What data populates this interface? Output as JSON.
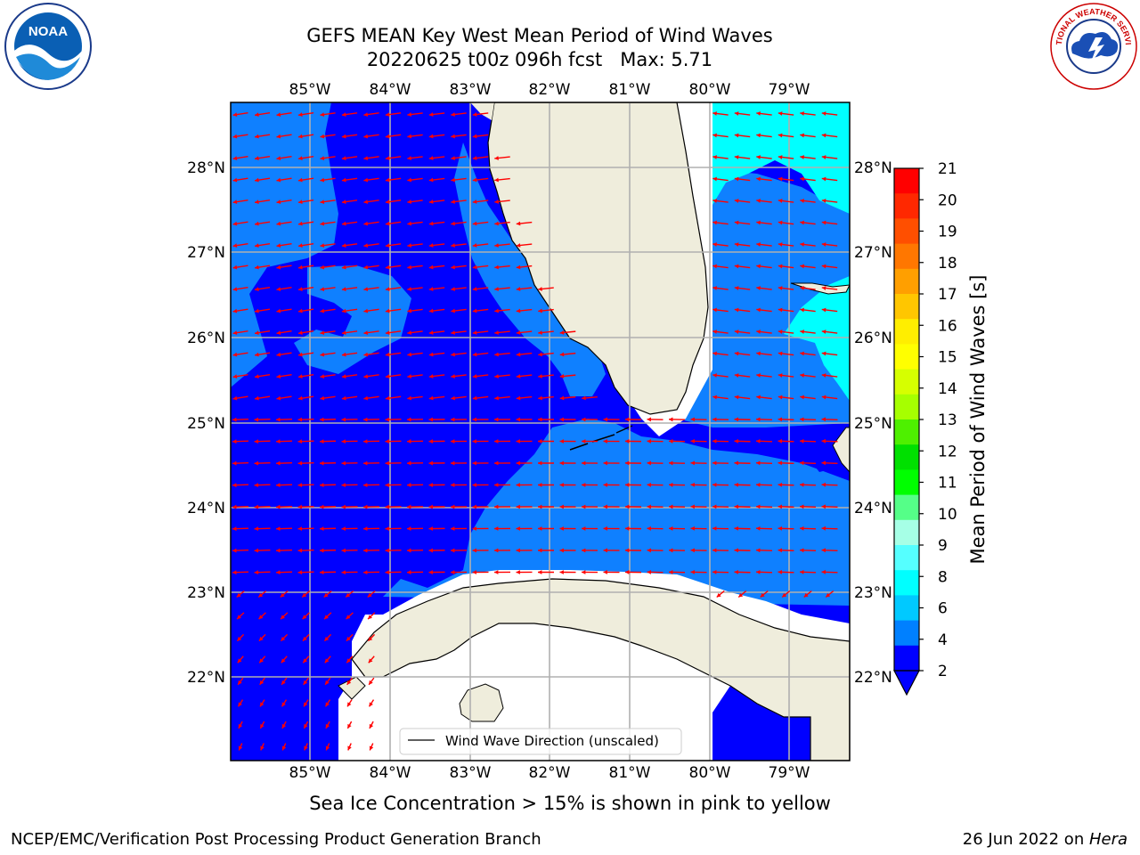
{
  "header": {
    "title_line1": "GEFS MEAN Key West Mean Period of Wind Waves",
    "title_line2": "20220625 t00z 096h fcst   Max: 5.71"
  },
  "map": {
    "lon_labels": [
      "85°W",
      "84°W",
      "83°W",
      "82°W",
      "81°W",
      "80°W",
      "79°W"
    ],
    "lat_labels": [
      "28°N",
      "27°N",
      "26°N",
      "25°N",
      "24°N",
      "23°N",
      "22°N"
    ],
    "legend_label": "Wind Wave Direction (unscaled)",
    "colors": {
      "ocean_dark": "#0000ff",
      "ocean_mid": "#0f80ff",
      "ocean_light": "#2aa8f5",
      "ocean_cyan": "#00ffff",
      "land": "#efeddc",
      "arrow": "#ff0000"
    }
  },
  "colorbar": {
    "label": "Mean Period of Wind Waves [s]",
    "ticks": [
      "21",
      "20",
      "19",
      "18",
      "17",
      "16",
      "15",
      "14",
      "13",
      "12",
      "11",
      "10",
      "9",
      "8",
      "6",
      "4",
      "2"
    ],
    "colors": [
      "#ff0000",
      "#ff2800",
      "#ff4f00",
      "#ff7700",
      "#ff9f00",
      "#ffc600",
      "#ffee00",
      "#ffff00",
      "#d6ff00",
      "#a6ff00",
      "#4ef000",
      "#00e000",
      "#00ff00",
      "#55ff88",
      "#a6ffe6",
      "#55ffff",
      "#00ffff",
      "#00c9ff",
      "#0080ff",
      "#0000ff"
    ]
  },
  "footer": {
    "caption": "Sea Ice Concentration > 15% is shown in pink to yellow",
    "credit": "NCEP/EMC/Verification Post Processing Product Generation Branch",
    "date_text": "26 Jun 2022 on ",
    "host": "Hera"
  },
  "logos": {
    "noaa_text": "NOAA",
    "nws_text": "NATIONAL WEATHER SERVICE"
  }
}
